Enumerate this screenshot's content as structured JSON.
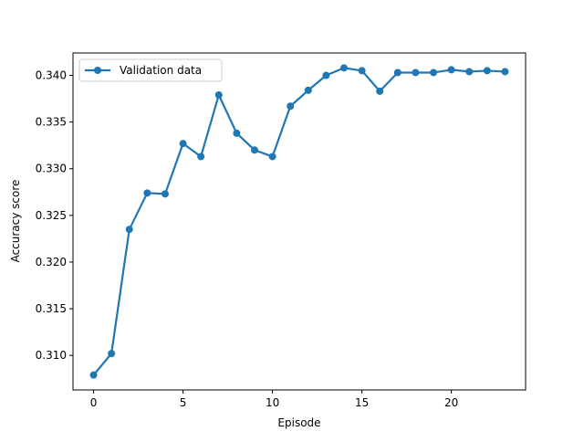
{
  "chart_data": {
    "type": "line",
    "title": "",
    "xlabel": "Episode",
    "ylabel": "Accuracy score",
    "xlim": [
      -1.15,
      24.15
    ],
    "ylim": [
      0.3063,
      0.3424
    ],
    "xticks": [
      0,
      5,
      10,
      15,
      20
    ],
    "xtick_labels": [
      "0",
      "5",
      "10",
      "15",
      "20"
    ],
    "yticks": [
      0.31,
      0.315,
      0.32,
      0.325,
      0.33,
      0.335,
      0.34
    ],
    "ytick_labels": [
      "0.310",
      "0.315",
      "0.320",
      "0.325",
      "0.330",
      "0.335",
      "0.340"
    ],
    "grid": false,
    "legend_position": "upper-left",
    "series": [
      {
        "name": "Validation data",
        "color": "#1f77b4",
        "marker": "circle",
        "x": [
          0,
          1,
          2,
          3,
          4,
          5,
          6,
          7,
          8,
          9,
          10,
          11,
          12,
          13,
          14,
          15,
          16,
          17,
          18,
          19,
          20,
          21,
          22,
          23
        ],
        "y": [
          0.3079,
          0.3102,
          0.3235,
          0.3274,
          0.3273,
          0.3327,
          0.3313,
          0.3379,
          0.3338,
          0.332,
          0.3313,
          0.3367,
          0.3384,
          0.34,
          0.3408,
          0.3405,
          0.3383,
          0.3403,
          0.3403,
          0.3403,
          0.3406,
          0.3404,
          0.3405,
          0.3404
        ]
      }
    ]
  }
}
